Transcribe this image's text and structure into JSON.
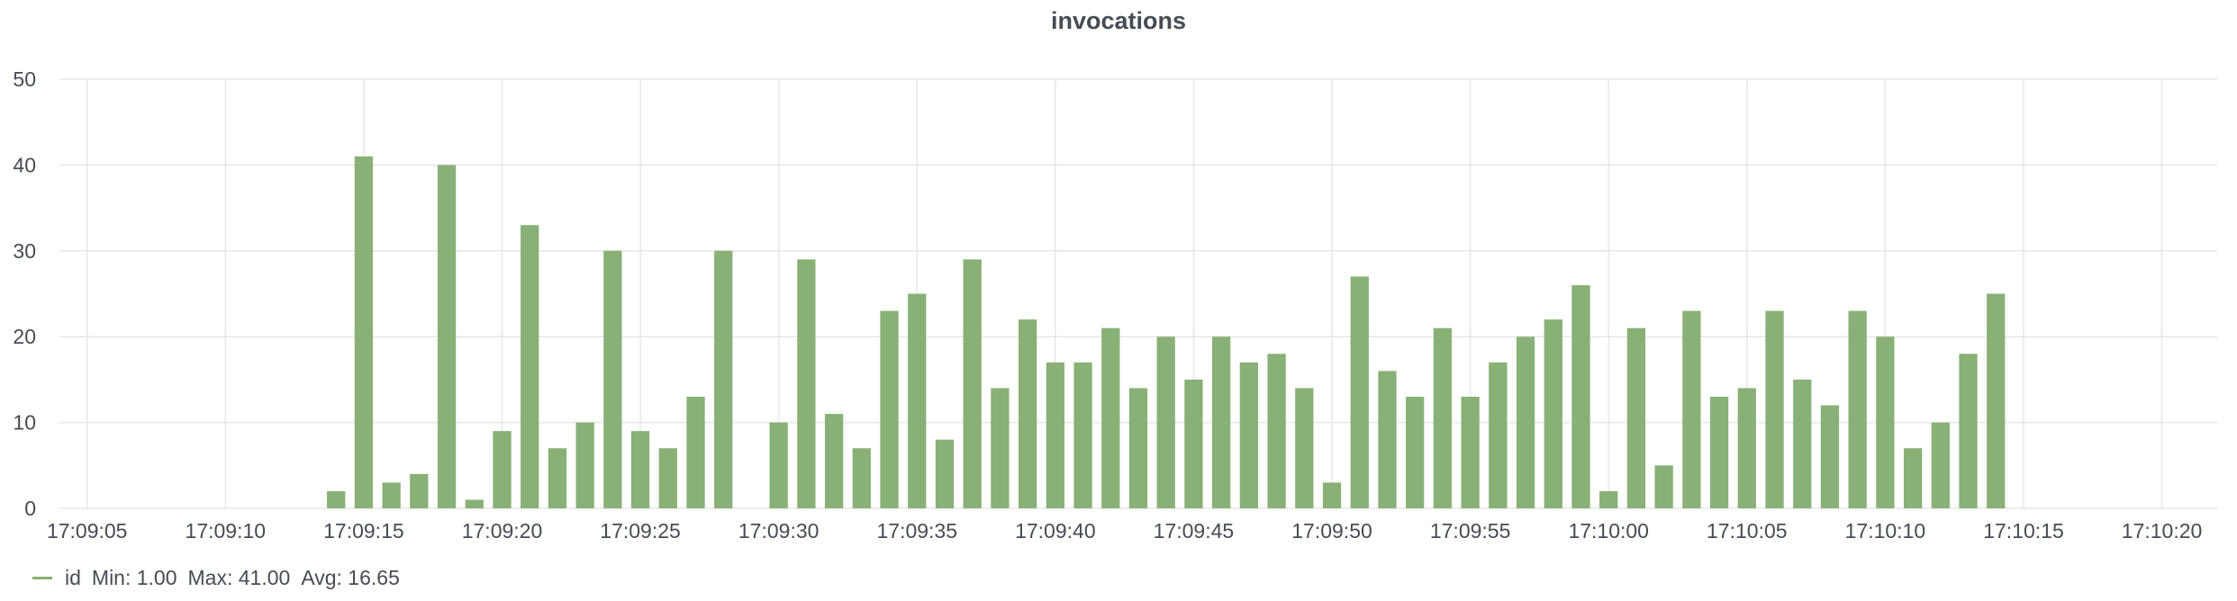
{
  "panel": {
    "title": "invocations"
  },
  "legend": {
    "series_name": "id",
    "stats": {
      "min": "Min: 1.00",
      "max": "Max: 41.00",
      "avg": "Avg: 16.65"
    }
  },
  "colors": {
    "series": "#89b076",
    "grid": "#e6e7e9",
    "text": "#464c54"
  },
  "chart_data": {
    "type": "bar",
    "title": "invocations",
    "xlabel": "",
    "ylabel": "",
    "x_axis": {
      "min": "17:09:04",
      "max": "17:10:22",
      "tick_labels": [
        "17:09:05",
        "17:09:10",
        "17:09:15",
        "17:09:20",
        "17:09:25",
        "17:09:30",
        "17:09:35",
        "17:09:40",
        "17:09:45",
        "17:09:50",
        "17:09:55",
        "17:10:00",
        "17:10:05",
        "17:10:10",
        "17:10:15",
        "17:10:20"
      ]
    },
    "y_axis": {
      "ylim": [
        0,
        50
      ],
      "tick_labels": [
        "0",
        "10",
        "20",
        "30",
        "40",
        "50"
      ]
    },
    "grid": true,
    "legend_position": "bottom-left",
    "series": [
      {
        "name": "id",
        "times": [
          "17:09:14",
          "17:09:15",
          "17:09:16",
          "17:09:17",
          "17:09:18",
          "17:09:19",
          "17:09:20",
          "17:09:21",
          "17:09:22",
          "17:09:23",
          "17:09:24",
          "17:09:25",
          "17:09:26",
          "17:09:27",
          "17:09:28",
          "17:09:29",
          "17:09:30",
          "17:09:31",
          "17:09:32",
          "17:09:33",
          "17:09:34",
          "17:09:35",
          "17:09:36",
          "17:09:37",
          "17:09:38",
          "17:09:39",
          "17:09:40",
          "17:09:41",
          "17:09:42",
          "17:09:43",
          "17:09:44",
          "17:09:45",
          "17:09:46",
          "17:09:47",
          "17:09:48",
          "17:09:49",
          "17:09:50",
          "17:09:51",
          "17:09:52",
          "17:09:53",
          "17:09:54",
          "17:09:55",
          "17:09:56",
          "17:09:57",
          "17:09:58",
          "17:09:59",
          "17:10:00",
          "17:10:01",
          "17:10:02",
          "17:10:03",
          "17:10:04",
          "17:10:05",
          "17:10:06",
          "17:10:07",
          "17:10:08",
          "17:10:09",
          "17:10:10",
          "17:10:11",
          "17:10:12",
          "17:10:13",
          "17:10:14"
        ],
        "values": [
          2,
          41,
          3,
          4,
          40,
          1,
          9,
          33,
          7,
          10,
          30,
          9,
          7,
          13,
          30,
          0,
          10,
          29,
          11,
          7,
          23,
          25,
          8,
          29,
          14,
          22,
          17,
          17,
          21,
          14,
          20,
          15,
          20,
          17,
          18,
          14,
          3,
          27,
          16,
          13,
          21,
          13,
          17,
          20,
          22,
          26,
          2,
          21,
          5,
          23,
          13,
          14,
          23,
          15,
          12,
          23,
          20,
          7,
          10,
          18,
          25
        ]
      }
    ]
  }
}
